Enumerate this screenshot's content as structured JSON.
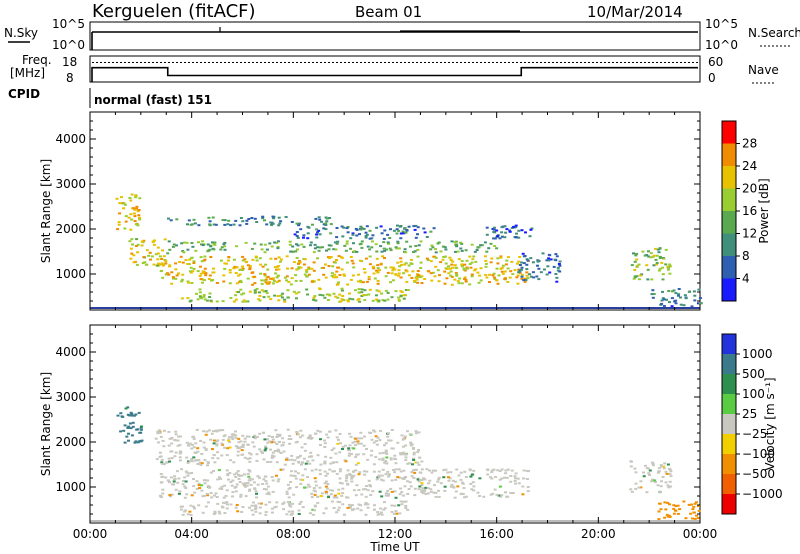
{
  "header": {
    "station": "Kerguelen (fitACF)",
    "beam": "Beam 01",
    "date": "10/Mar/2014"
  },
  "noise_panel": {
    "left_label": "N.Sky",
    "right_label": "N.Search",
    "left_ticks": [
      "10^5",
      "10^0"
    ],
    "right_ticks": [
      "10^5",
      "10^0"
    ]
  },
  "freq_panel": {
    "left_label_line1": "Freq.",
    "left_label_line2": "[MHz]",
    "right_label": "Nave",
    "left_ticks": [
      "18",
      "8"
    ],
    "right_ticks": [
      "60",
      "0"
    ],
    "freq_steps": [
      {
        "from_hour": 0,
        "to_hour": 3,
        "mhz": 13.5
      },
      {
        "from_hour": 3,
        "to_hour": 17,
        "mhz": 10.5
      },
      {
        "from_hour": 17,
        "to_hour": 24,
        "mhz": 13.5
      }
    ],
    "nave_level": 45
  },
  "cpid": {
    "label": "CPID",
    "mode_text": "normal (fast) 151"
  },
  "chart_data": [
    {
      "type": "heatmap",
      "name": "power",
      "ylabel": "Slant Range [km]",
      "xlabel": "Time UT",
      "xlim": [
        0,
        24
      ],
      "ylim": [
        200,
        4600
      ],
      "y_ticks": [
        "1000",
        "2000",
        "3000",
        "4000"
      ],
      "y_tick_values": [
        1000,
        2000,
        3000,
        4000
      ],
      "x_ticks": [
        "00:00",
        "04:00",
        "08:00",
        "12:00",
        "16:00",
        "20:00",
        "00:00"
      ],
      "x_tick_values": [
        0,
        4,
        8,
        12,
        16,
        20,
        24
      ],
      "colorbar_label": "Power [dB]",
      "colorbar_ticks": [
        "4",
        "8",
        "12",
        "16",
        "20",
        "24",
        "28"
      ],
      "colorbar_range": [
        0,
        32
      ],
      "colorbar_colors": [
        "#1a1aff",
        "#2f5fb0",
        "#3f8f7a",
        "#5aa84f",
        "#9acd32",
        "#e6c200",
        "#f08c00",
        "#ff0000"
      ],
      "echo_regions": [
        {
          "t0": 2.7,
          "t1": 17.2,
          "r0": 780,
          "r1": 1420,
          "level": 22
        },
        {
          "t0": 3.0,
          "t1": 16.0,
          "r0": 1500,
          "r1": 1750,
          "level": 14
        },
        {
          "t0": 1.0,
          "t1": 2.0,
          "r0": 2000,
          "r1": 2800,
          "level": 22
        },
        {
          "t0": 1.5,
          "t1": 3.0,
          "r0": 1200,
          "r1": 1800,
          "level": 20
        },
        {
          "t0": 3.5,
          "t1": 12.5,
          "r0": 400,
          "r1": 700,
          "level": 18
        },
        {
          "t0": 3.0,
          "t1": 9.5,
          "r0": 2100,
          "r1": 2300,
          "level": 10
        },
        {
          "t0": 8.0,
          "t1": 13.5,
          "r0": 1800,
          "r1": 2100,
          "level": 8
        },
        {
          "t0": 15.5,
          "t1": 17.5,
          "r0": 1800,
          "r1": 2100,
          "level": 6
        },
        {
          "t0": 16.8,
          "t1": 18.5,
          "r0": 850,
          "r1": 1500,
          "level": 7
        },
        {
          "t0": 21.2,
          "t1": 22.8,
          "r0": 900,
          "r1": 1600,
          "level": 16
        },
        {
          "t0": 22.0,
          "t1": 24.0,
          "r0": 300,
          "r1": 700,
          "level": 8
        }
      ]
    },
    {
      "type": "heatmap",
      "name": "velocity",
      "ylabel": "Slant Range [km]",
      "xlabel": "Time UT",
      "xlim": [
        0,
        24
      ],
      "ylim": [
        200,
        4600
      ],
      "y_ticks": [
        "1000",
        "2000",
        "3000",
        "4000"
      ],
      "y_tick_values": [
        1000,
        2000,
        3000,
        4000
      ],
      "x_ticks": [
        "00:00",
        "04:00",
        "08:00",
        "12:00",
        "16:00",
        "20:00",
        "00:00"
      ],
      "x_tick_values": [
        0,
        4,
        8,
        12,
        16,
        20,
        24
      ],
      "colorbar_label": "Velocity [m s⁻¹]",
      "colorbar_ticks": [
        "1000",
        "500",
        "100",
        "25",
        "−25",
        "−100",
        "−500",
        "−1000"
      ],
      "colorbar_colors": [
        "#2233dd",
        "#3a7a8a",
        "#2f8f4f",
        "#5acc44",
        "#c8c8c0",
        "#f2d000",
        "#f09000",
        "#f06000",
        "#ee0000"
      ],
      "echo_regions": [
        {
          "t0": 2.7,
          "t1": 17.2,
          "r0": 780,
          "r1": 1420,
          "level": 0
        },
        {
          "t0": 2.5,
          "t1": 13.0,
          "r0": 1500,
          "r1": 2300,
          "level": 0
        },
        {
          "t0": 1.0,
          "t1": 2.0,
          "r0": 2000,
          "r1": 2800,
          "level": 600
        },
        {
          "t0": 3.5,
          "t1": 12.5,
          "r0": 400,
          "r1": 700,
          "level": 0
        },
        {
          "t0": 21.2,
          "t1": 22.8,
          "r0": 900,
          "r1": 1600,
          "level": 0
        },
        {
          "t0": 22.3,
          "t1": 24.0,
          "r0": 300,
          "r1": 700,
          "level": -200
        }
      ]
    }
  ]
}
